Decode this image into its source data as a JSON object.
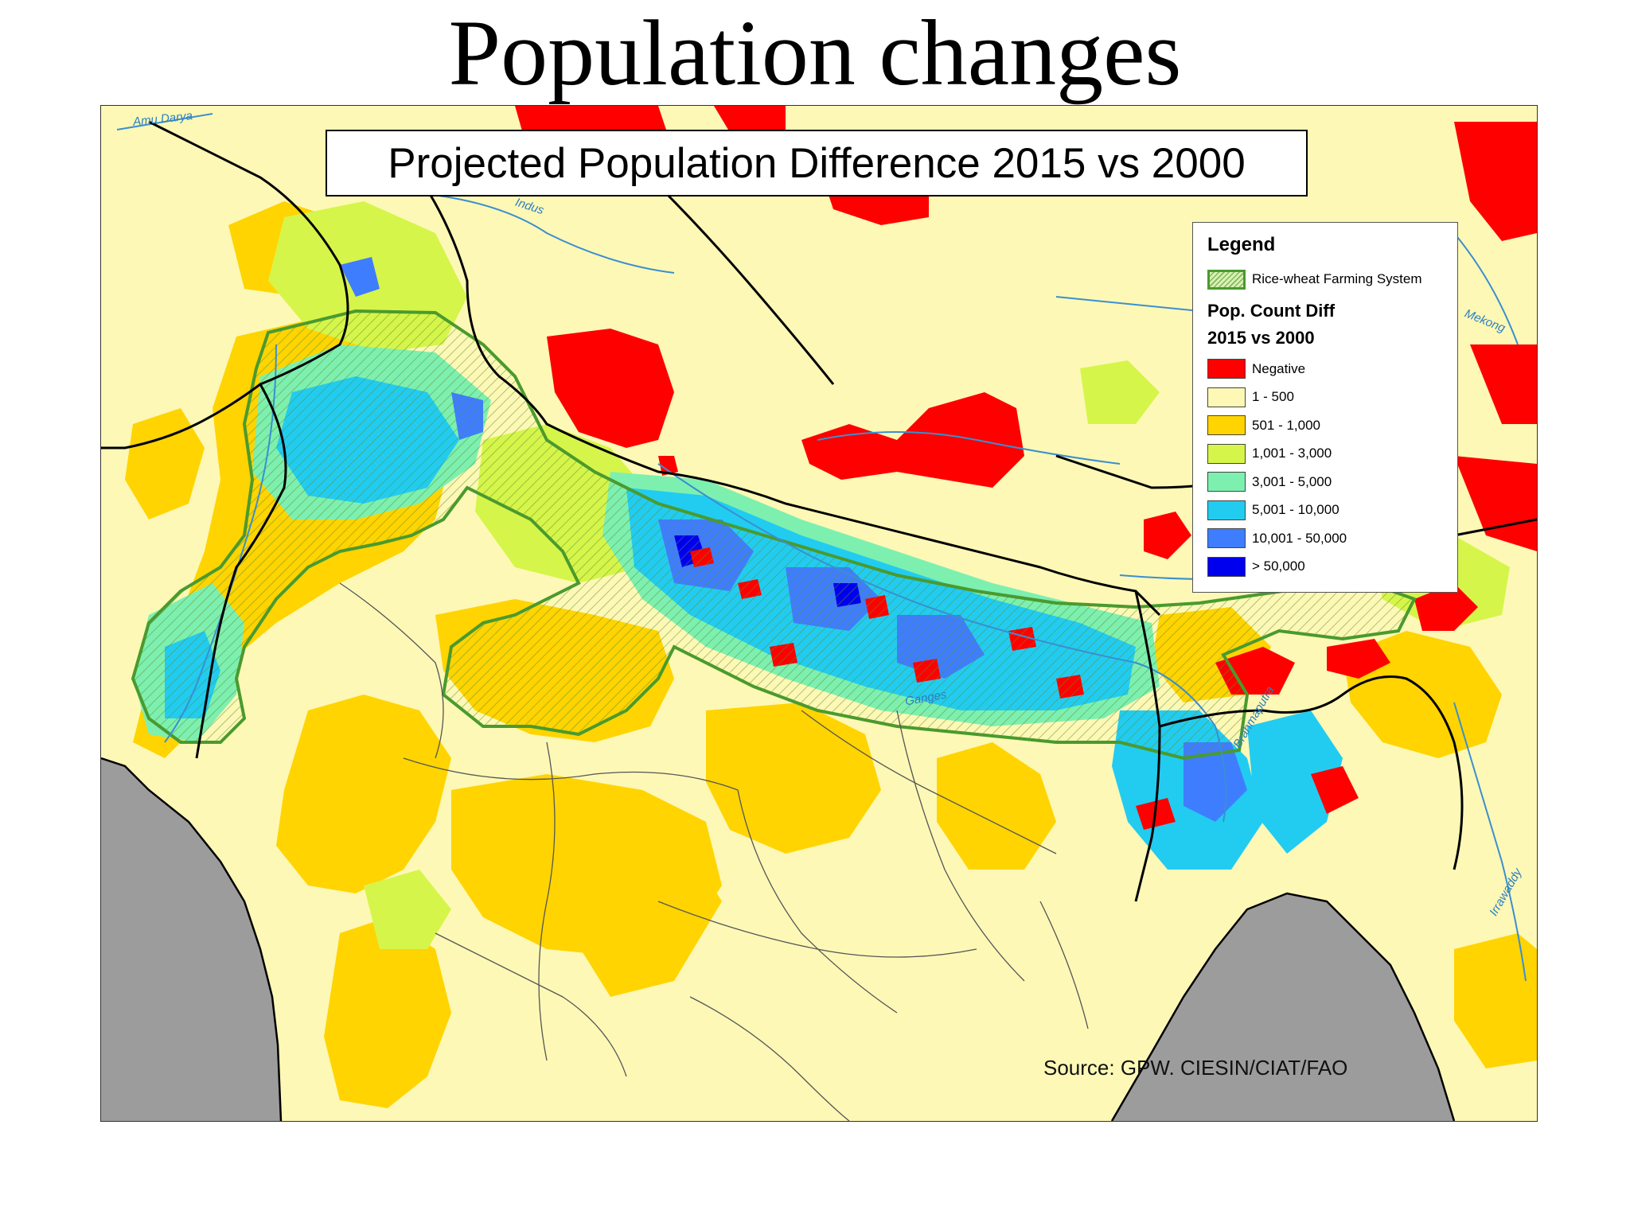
{
  "slide": {
    "title": "Population changes"
  },
  "map": {
    "title": "Projected Population Difference 2015 vs 2000",
    "source": "Source: GPW. CIESIN/CIAT/FAO",
    "river_labels": {
      "amu_darya": "Amu Darya",
      "indus": "Indus",
      "ganges": "Ganges",
      "brahmaputra": "Brahmaputra",
      "mekong": "Mekong",
      "irrawaddy": "Irrawaddy"
    },
    "legend": {
      "title": "Legend",
      "farming_system": {
        "label": "Rice-wheat Farming System",
        "fill": "#d9f0b5",
        "stroke": "#4a9a2e"
      },
      "subtitle_line1": "Pop. Count Diff",
      "subtitle_line2": "2015 vs 2000",
      "classes": [
        {
          "label": "Negative",
          "color": "#ff0000"
        },
        {
          "label": "1 - 500",
          "color": "#fdf8b6"
        },
        {
          "label": "501 - 1,000",
          "color": "#ffd400"
        },
        {
          "label": "1,001 - 3,000",
          "color": "#d6f54a"
        },
        {
          "label": "3,001 - 5,000",
          "color": "#7df0b0"
        },
        {
          "label": "5,001 - 10,000",
          "color": "#22ccf0"
        },
        {
          "label": "10,001 - 50,000",
          "color": "#3f7dff"
        },
        {
          "label": "> 50,000",
          "color": "#0000ee"
        }
      ]
    },
    "colors": {
      "sea": "#9c9c9c",
      "boundary": "#000000",
      "state_boundary": "#555555",
      "river": "#3a8fd0"
    }
  }
}
